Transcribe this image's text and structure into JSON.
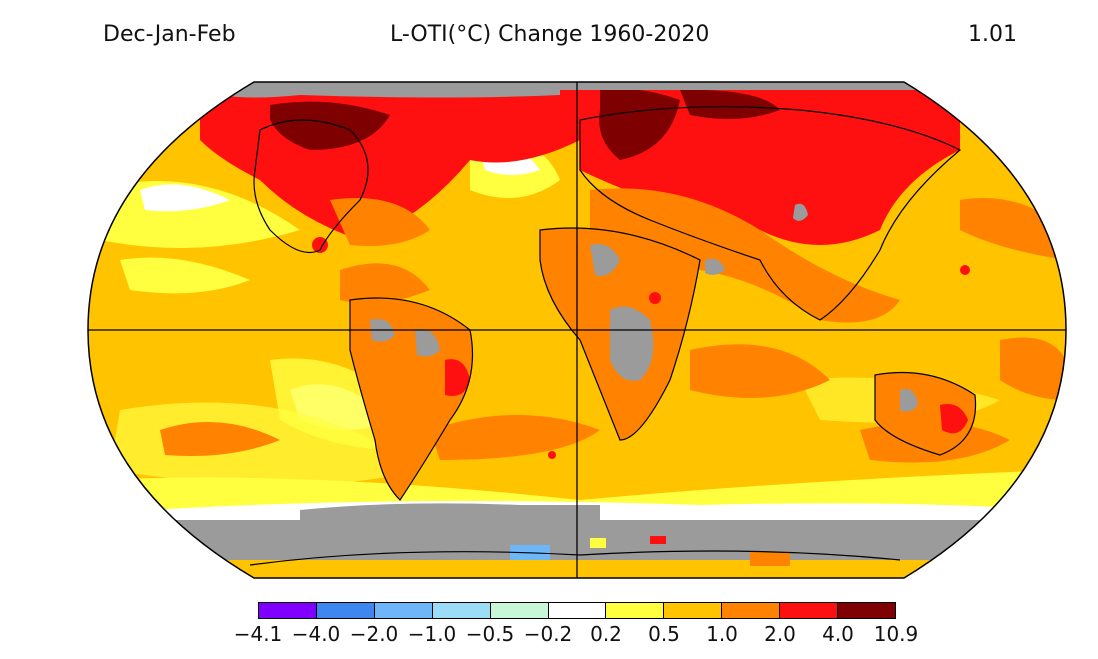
{
  "header": {
    "season": "Dec-Jan-Feb",
    "title": "L-OTI(°C) Change 1960-2020",
    "global_mean": "1.01"
  },
  "legend": {
    "ticks": [
      "−4.1",
      "−4.0",
      "−2.0",
      "−1.0",
      "−0.5",
      "−0.2",
      "0.2",
      "0.5",
      "1.0",
      "2.0",
      "4.0",
      "10.9"
    ],
    "colors": [
      "#8000ff",
      "#3f86f0",
      "#6db6f7",
      "#9bddf6",
      "#c8f7d8",
      "#ffffff",
      "#ffff40",
      "#ffc300",
      "#ff8200",
      "#ff1010",
      "#7f0000"
    ],
    "missing_color": "#9b9b9b"
  },
  "map": {
    "projection": "Robinson",
    "region": "global",
    "variable": "Land-Ocean Temperature Index change",
    "period": "1960-2020"
  }
}
